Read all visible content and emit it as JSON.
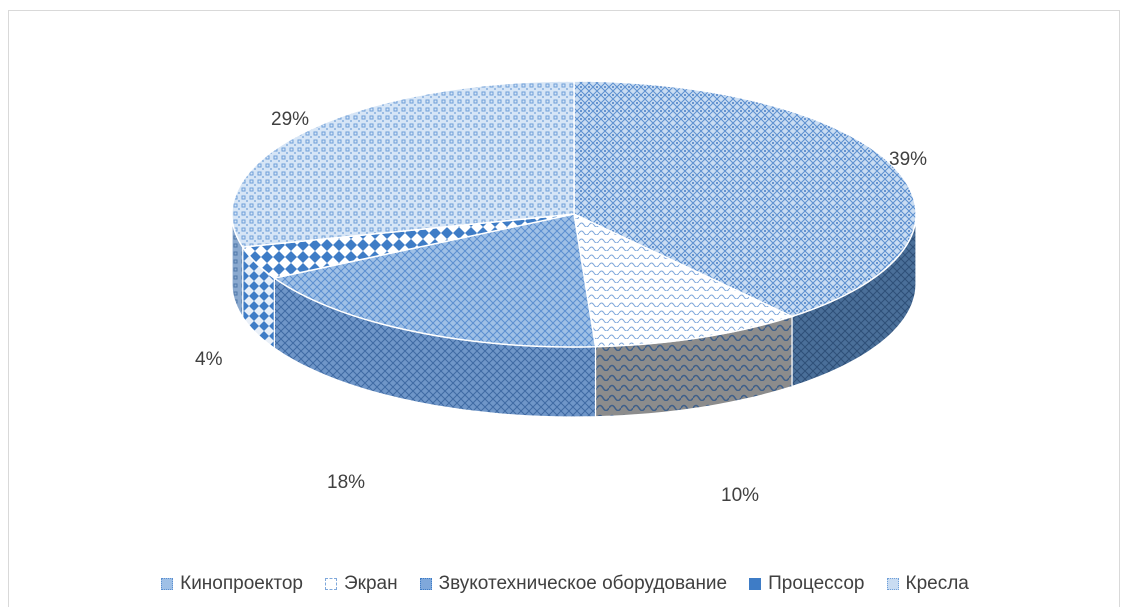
{
  "chart_data": {
    "type": "pie",
    "categories": [
      "Кинопроектор",
      "Экран",
      "Звукотехническое оборудование",
      "Процессор",
      "Кресла"
    ],
    "values": [
      39,
      10,
      18,
      4,
      29
    ],
    "data_labels": [
      "39%",
      "10%",
      "18%",
      "4%",
      "29%"
    ],
    "legend_position": "bottom",
    "style": "3d-pie-patterned",
    "colors": [
      "#6f9fd8",
      "#7fa8db",
      "#5b8fd0",
      "#3e7cc6",
      "#8db2e0"
    ]
  }
}
